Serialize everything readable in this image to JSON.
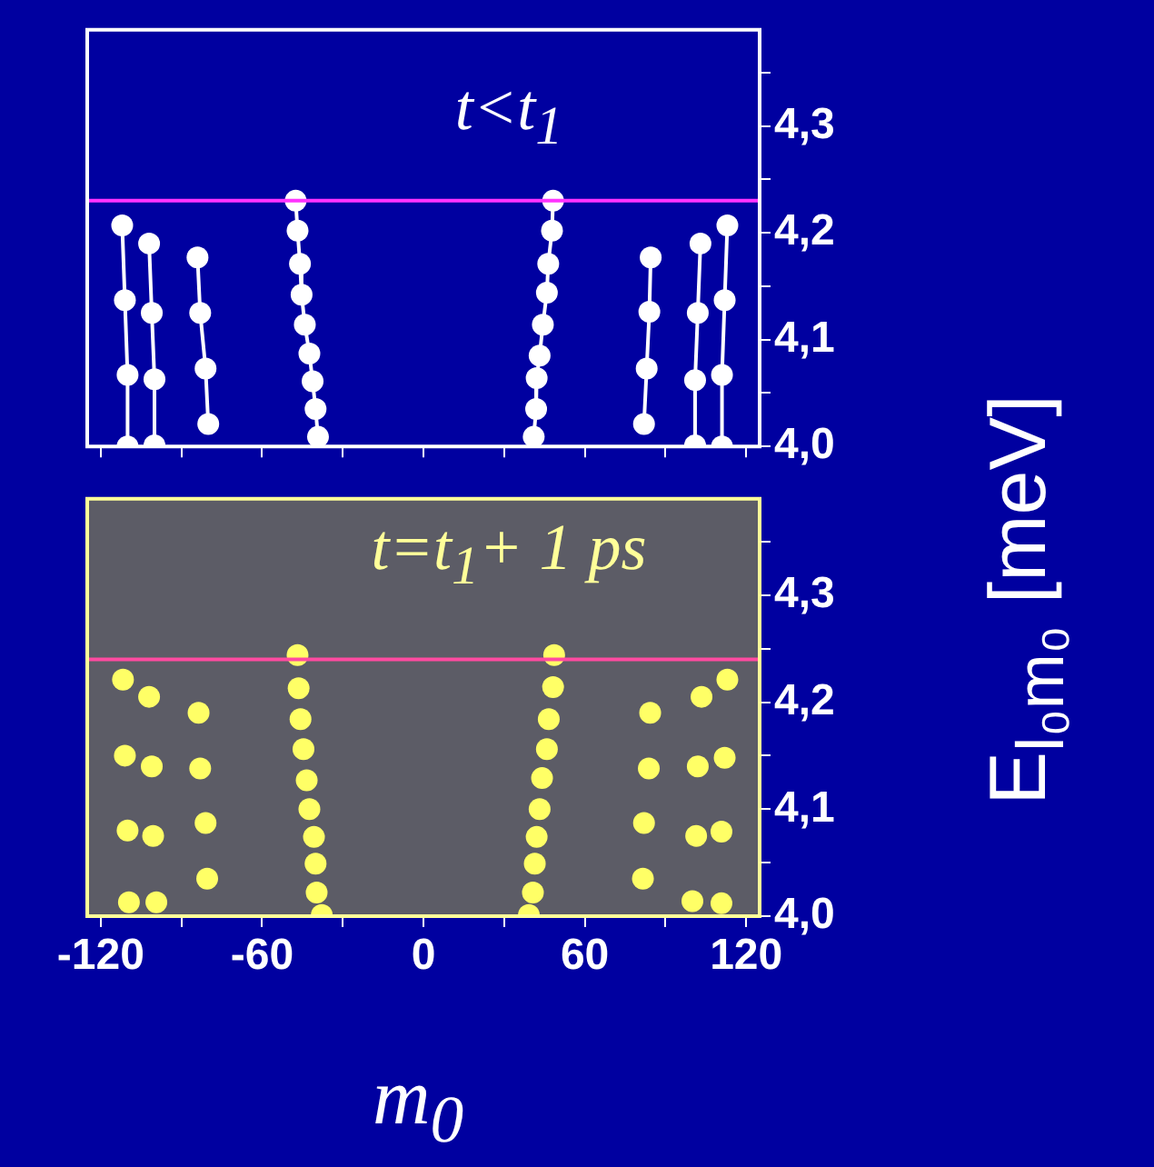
{
  "chart_data": [
    {
      "type": "line",
      "annotations": [
        "t<t$_{1}$"
      ],
      "ylabel": "E$_{l₀m₀}$ [meV]",
      "xlim": [
        -125,
        125
      ],
      "ylim": [
        4.0,
        4.39
      ],
      "xticks": [
        -120,
        {
          "value": -90,
          "label": null
        },
        -60,
        {
          "value": -30,
          "label": null
        },
        0,
        {
          "value": 30,
          "label": null
        },
        60,
        {
          "value": 90,
          "label": null
        },
        120
      ],
      "yticks": [
        {
          "value": 4.0,
          "label": "4,0"
        },
        {
          "value": 4.05,
          "label": null
        },
        {
          "value": 4.1,
          "label": "4,1"
        },
        {
          "value": 4.15,
          "label": null
        },
        {
          "value": 4.2,
          "label": "4,2"
        },
        {
          "value": 4.25,
          "label": null
        },
        {
          "value": 4.3,
          "label": "4,3"
        },
        {
          "value": 4.35,
          "label": null
        }
      ],
      "tick_labels": "y",
      "grid": false,
      "legend": false,
      "marker": "circle",
      "line_style": "solid",
      "ref_lines": [
        {
          "axis": "y",
          "value": 4.23,
          "color": "#ff33ff"
        }
      ],
      "series": [
        {
          "color": "#ffffff",
          "x": [
            -112,
            -111,
            -110,
            -110
          ],
          "values": [
            4.207,
            4.137,
            4.067,
            4.0
          ]
        },
        {
          "color": "#ffffff",
          "x": [
            -102,
            -101,
            -100,
            -100
          ],
          "values": [
            4.19,
            4.125,
            4.063,
            4.001
          ]
        },
        {
          "color": "#ffffff",
          "x": [
            -84,
            -83,
            -81,
            -80
          ],
          "values": [
            4.177,
            4.125,
            4.073,
            4.021
          ]
        },
        {
          "color": "#ffffff",
          "x": [
            -47.5,
            -46.8,
            -45.9,
            -45.3,
            -44.1,
            -42.4,
            -41.2,
            -40.1,
            -39.2
          ],
          "values": [
            4.23,
            4.202,
            4.171,
            4.142,
            4.114,
            4.087,
            4.061,
            4.035,
            4.009
          ]
        },
        {
          "color": "#ffffff",
          "x": [
            48.2,
            47.8,
            46.4,
            45.9,
            44.4,
            43.2,
            42.1,
            41.9,
            41.0
          ],
          "values": [
            4.23,
            4.202,
            4.171,
            4.144,
            4.114,
            4.085,
            4.064,
            4.035,
            4.009
          ]
        },
        {
          "color": "#ffffff",
          "x": [
            84.5,
            84,
            83,
            82
          ],
          "values": [
            4.177,
            4.126,
            4.073,
            4.021
          ]
        },
        {
          "color": "#ffffff",
          "x": [
            103,
            102,
            101,
            101
          ],
          "values": [
            4.19,
            4.125,
            4.062,
            4.001
          ]
        },
        {
          "color": "#ffffff",
          "x": [
            113,
            112,
            111,
            111
          ],
          "values": [
            4.207,
            4.137,
            4.067,
            4.0
          ]
        }
      ]
    },
    {
      "type": "scatter",
      "annotations": [
        "t=t$_{1}$+ 1 ps"
      ],
      "xlabel": "m$_{0}$",
      "xlim": [
        -125,
        125
      ],
      "ylim": [
        4.0,
        4.39
      ],
      "xticks": [
        -120,
        {
          "value": -90,
          "label": null
        },
        -60,
        {
          "value": -30,
          "label": null
        },
        0,
        {
          "value": 30,
          "label": null
        },
        60,
        {
          "value": 90,
          "label": null
        },
        120
      ],
      "yticks": [
        {
          "value": 4.0,
          "label": "4,0"
        },
        {
          "value": 4.05,
          "label": null
        },
        {
          "value": 4.1,
          "label": "4,1"
        },
        {
          "value": 4.15,
          "label": null
        },
        {
          "value": 4.2,
          "label": "4,2"
        },
        {
          "value": 4.25,
          "label": null
        },
        {
          "value": 4.3,
          "label": "4,3"
        },
        {
          "value": 4.35,
          "label": null
        }
      ],
      "grid": false,
      "legend": false,
      "marker": "circle",
      "ref_lines": [
        {
          "axis": "y",
          "value": 4.24,
          "color": "#ff4aa0"
        }
      ],
      "series": [
        {
          "color": "#ffff66",
          "x": [
            -111.7,
            -111,
            -110,
            -109.5,
            -102,
            -101,
            -100.5,
            -99.3,
            -83.6,
            -83,
            -81,
            -80.4,
            -46.8,
            -46.4,
            -45.7,
            -44.6,
            -43.4,
            -42.4,
            -40.7,
            -40.1,
            -39.7,
            -37.8,
            48.6,
            48.2,
            46.6,
            45.9,
            44.1,
            43.2,
            42.1,
            41.4,
            40.7,
            39.2,
            84.3,
            83.8,
            82,
            81.6,
            103.4,
            102,
            101.4,
            100,
            113,
            112,
            110.8,
            110.8
          ],
          "values": [
            4.221,
            4.15,
            4.08,
            4.013,
            4.205,
            4.14,
            4.075,
            4.013,
            4.19,
            4.138,
            4.087,
            4.035,
            4.244,
            4.213,
            4.184,
            4.156,
            4.127,
            4.1,
            4.074,
            4.049,
            4.022,
            4.001,
            4.244,
            4.214,
            4.184,
            4.156,
            4.129,
            4.1,
            4.074,
            4.049,
            4.022,
            4.001,
            4.19,
            4.138,
            4.087,
            4.035,
            4.205,
            4.14,
            4.075,
            4.014,
            4.221,
            4.148,
            4.079,
            4.012
          ]
        }
      ]
    }
  ]
}
